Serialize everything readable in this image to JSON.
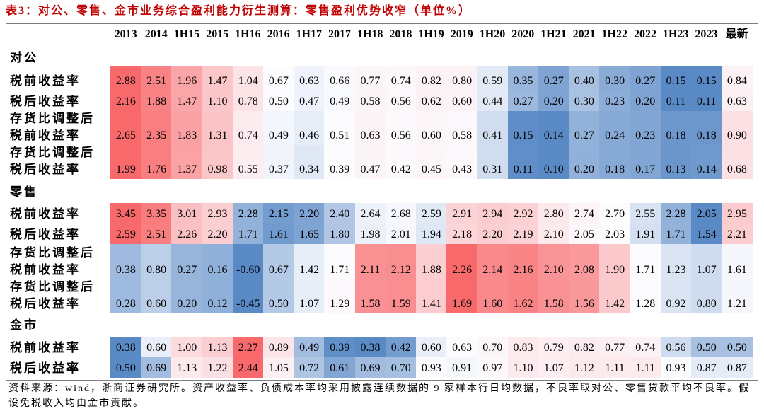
{
  "colors": {
    "title": "#c00000",
    "rule": "#7f7f7f",
    "text": "#000000"
  },
  "source_note": "资料来源：wind，浙商证券研究所。资产收益率、负债成本率均采用披露连续数据的 9 家样本行日均数据，不良率取对公、零售贷款平均不良率。假设免税收入均由金市贡献。",
  "chart_data": {
    "type": "heatmap",
    "title": "表3：对公、零售、金市业务综合盈利能力衍生测算：零售盈利优势收窄（单位%）",
    "color_scale": {
      "low": "#5a8ac6",
      "mid": "#fcfcff",
      "high": "#f8696b"
    },
    "columns": [
      "2013",
      "2014",
      "1H15",
      "2015",
      "1H16",
      "2016",
      "1H17",
      "2017",
      "1H18",
      "2018",
      "1H19",
      "2019",
      "1H20",
      "2020",
      "1H21",
      "2021",
      "1H22",
      "2022",
      "1H23",
      "2023",
      "最新"
    ],
    "sections": [
      {
        "name": "对公",
        "rows": [
          {
            "label": [
              "税前收益率"
            ],
            "values": [
              2.88,
              2.51,
              1.96,
              1.47,
              1.04,
              0.67,
              0.63,
              0.66,
              0.77,
              0.74,
              0.82,
              0.8,
              0.59,
              0.35,
              0.27,
              0.4,
              0.3,
              0.27,
              0.15,
              0.15,
              0.84
            ]
          },
          {
            "label": [
              "税后收益率"
            ],
            "values": [
              2.16,
              1.88,
              1.47,
              1.1,
              0.78,
              0.5,
              0.47,
              0.49,
              0.58,
              0.56,
              0.62,
              0.6,
              0.44,
              0.27,
              0.2,
              0.3,
              0.23,
              0.2,
              0.11,
              0.11,
              0.63
            ]
          },
          {
            "label": [
              "存货比调整后",
              "税前收益率"
            ],
            "values": [
              2.65,
              2.35,
              1.83,
              1.31,
              0.74,
              0.49,
              0.46,
              0.51,
              0.63,
              0.56,
              0.6,
              0.58,
              0.41,
              0.15,
              0.14,
              0.27,
              0.24,
              0.23,
              0.18,
              0.18,
              0.9
            ]
          },
          {
            "label": [
              "存货比调整后",
              "税后收益率"
            ],
            "values": [
              1.99,
              1.76,
              1.37,
              0.98,
              0.55,
              0.37,
              0.34,
              0.39,
              0.47,
              0.42,
              0.45,
              0.43,
              0.31,
              0.11,
              0.1,
              0.2,
              0.18,
              0.17,
              0.13,
              0.14,
              0.68
            ]
          }
        ]
      },
      {
        "name": "零售",
        "rows": [
          {
            "label": [
              "税前收益率"
            ],
            "values": [
              3.45,
              3.35,
              3.01,
              2.93,
              2.28,
              2.15,
              2.2,
              2.4,
              2.64,
              2.68,
              2.59,
              2.91,
              2.94,
              2.92,
              2.8,
              2.74,
              2.7,
              2.55,
              2.28,
              2.05,
              2.95
            ]
          },
          {
            "label": [
              "税后收益率"
            ],
            "values": [
              2.59,
              2.51,
              2.26,
              2.2,
              1.71,
              1.61,
              1.65,
              1.8,
              1.98,
              2.01,
              1.94,
              2.18,
              2.2,
              2.19,
              2.1,
              2.05,
              2.03,
              1.91,
              1.71,
              1.54,
              2.21
            ]
          },
          {
            "label": [
              "存货比调整后",
              "税前收益率"
            ],
            "values": [
              0.38,
              0.8,
              0.27,
              0.16,
              -0.6,
              0.67,
              1.42,
              1.71,
              2.11,
              2.12,
              1.88,
              2.26,
              2.14,
              2.16,
              2.1,
              2.08,
              1.9,
              1.71,
              1.23,
              1.07,
              1.61
            ]
          },
          {
            "label": [
              "存货比调整后",
              "税后收益率"
            ],
            "values": [
              0.28,
              0.6,
              0.2,
              0.12,
              -0.45,
              0.5,
              1.07,
              1.29,
              1.58,
              1.59,
              1.41,
              1.69,
              1.6,
              1.62,
              1.58,
              1.56,
              1.42,
              1.28,
              0.92,
              0.8,
              1.21
            ]
          }
        ]
      },
      {
        "name": "金市",
        "rows": [
          {
            "label": [
              "税前收益率"
            ],
            "values": [
              0.38,
              0.6,
              1.0,
              1.13,
              2.27,
              0.89,
              0.49,
              0.39,
              0.38,
              0.42,
              0.6,
              0.63,
              0.7,
              0.83,
              0.79,
              0.82,
              0.77,
              0.74,
              0.56,
              0.5,
              0.5
            ]
          },
          {
            "label": [
              "税后收益率"
            ],
            "values": [
              0.5,
              0.69,
              1.13,
              1.22,
              2.44,
              1.05,
              0.72,
              0.61,
              0.69,
              0.7,
              0.93,
              0.91,
              0.97,
              1.1,
              1.07,
              1.12,
              1.11,
              1.11,
              0.93,
              0.87,
              0.87
            ]
          }
        ]
      }
    ]
  }
}
